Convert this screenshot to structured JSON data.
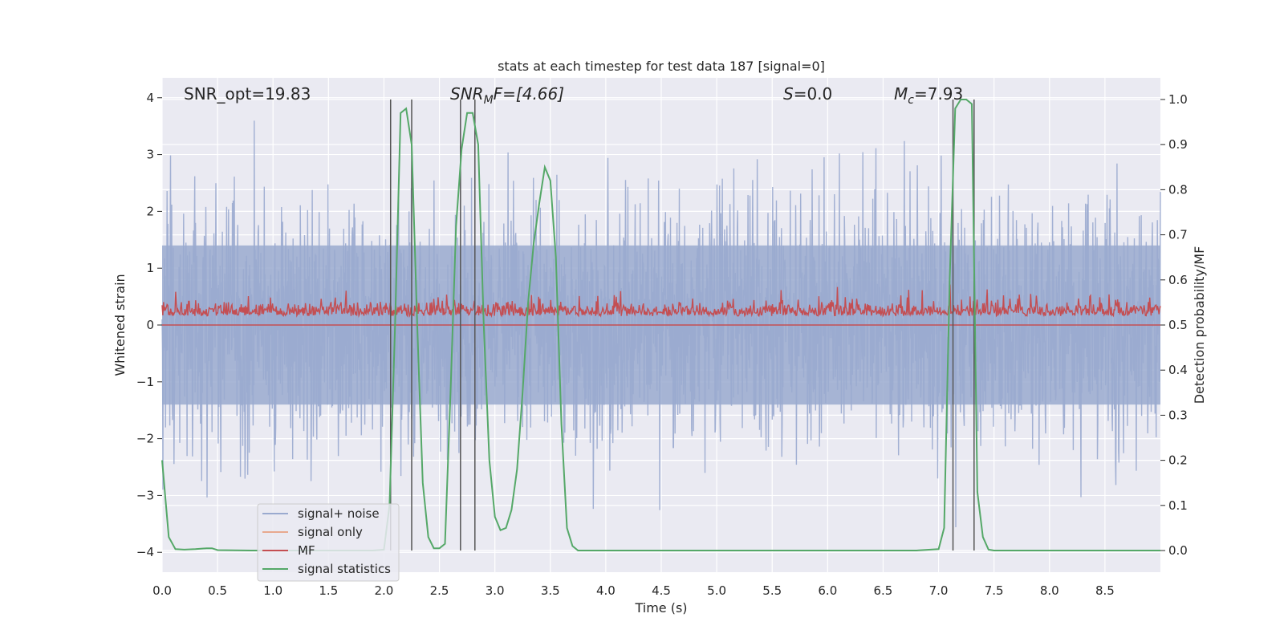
{
  "chart_data": {
    "type": "line",
    "title": "stats at each timestep for test data 187 [signal=0]",
    "xlabel": "Time (s)",
    "ylabel": "Whitened strain",
    "y2label": "Detection probability/MF",
    "xlim": [
      0.0,
      9.0
    ],
    "ylim": [
      -4.35,
      4.35
    ],
    "y2lim": [
      -0.048,
      1.048
    ],
    "xticks": [
      "0.0",
      "0.5",
      "1.0",
      "1.5",
      "2.0",
      "2.5",
      "3.0",
      "3.5",
      "4.0",
      "4.5",
      "5.0",
      "5.5",
      "6.0",
      "6.5",
      "7.0",
      "7.5",
      "8.0",
      "8.5"
    ],
    "yticks": [
      "4",
      "3",
      "2",
      "1",
      "0",
      "−1",
      "−2",
      "−3",
      "−4"
    ],
    "y2ticks": [
      "1.0",
      "0.9",
      "0.8",
      "0.7",
      "0.6",
      "0.5",
      "0.4",
      "0.3",
      "0.2",
      "0.1",
      "0.0"
    ],
    "grid": true,
    "legend_position": "bottom-left",
    "annotations": {
      "snr_opt": "SNR_opt=19.83",
      "snr_mf_main": "SNR",
      "snr_mf_sub": "M",
      "snr_mf_rest": "F=[4.66]",
      "s_main": "S",
      "s_rest": "=0.0",
      "mc_main": "M",
      "mc_sub": "c",
      "mc_rest": "=7.93"
    },
    "series": [
      {
        "name": "signal+ noise",
        "color": "#9aaacf",
        "axis": "left",
        "description": "whitened strain noise, approx. between -3 and +3 with spikes to +/-4"
      },
      {
        "name": "signal only",
        "color": "#e8a98f",
        "axis": "left",
        "values": []
      },
      {
        "name": "MF",
        "color": "#c44e52",
        "axis": "right",
        "range": [
          0.5,
          0.6
        ]
      },
      {
        "name": "signal statistics",
        "color": "#55a868",
        "axis": "right",
        "x": [
          0.0,
          0.06,
          0.12,
          0.2,
          0.3,
          0.4,
          0.45,
          0.5,
          0.8,
          1.2,
          1.6,
          1.9,
          2.0,
          2.05,
          2.1,
          2.15,
          2.2,
          2.25,
          2.3,
          2.35,
          2.4,
          2.45,
          2.5,
          2.55,
          2.6,
          2.65,
          2.7,
          2.75,
          2.8,
          2.85,
          2.9,
          2.95,
          3.0,
          3.05,
          3.1,
          3.15,
          3.2,
          3.25,
          3.3,
          3.35,
          3.4,
          3.45,
          3.5,
          3.55,
          3.6,
          3.65,
          3.7,
          3.75,
          4.0,
          5.0,
          6.0,
          6.8,
          7.0,
          7.05,
          7.1,
          7.15,
          7.2,
          7.25,
          7.3,
          7.35,
          7.4,
          7.45,
          7.5,
          8.0,
          8.5,
          9.0
        ],
        "values": [
          0.2,
          0.03,
          0.003,
          0.002,
          0.003,
          0.005,
          0.005,
          0.001,
          0.0,
          0.0,
          0.0,
          0.0,
          0.002,
          0.1,
          0.5,
          0.97,
          0.98,
          0.9,
          0.5,
          0.15,
          0.03,
          0.005,
          0.005,
          0.015,
          0.35,
          0.72,
          0.89,
          0.97,
          0.97,
          0.9,
          0.5,
          0.2,
          0.075,
          0.045,
          0.05,
          0.09,
          0.18,
          0.35,
          0.55,
          0.68,
          0.77,
          0.85,
          0.82,
          0.65,
          0.28,
          0.05,
          0.01,
          0.0,
          0.0,
          0.0,
          0.0,
          0.0,
          0.003,
          0.05,
          0.6,
          0.98,
          1.0,
          1.0,
          0.99,
          0.13,
          0.03,
          0.002,
          0.0,
          0.0,
          0.0,
          0.0
        ]
      }
    ],
    "vertical_lines": [
      2.06,
      2.25,
      2.69,
      2.82,
      7.13,
      7.32
    ]
  }
}
